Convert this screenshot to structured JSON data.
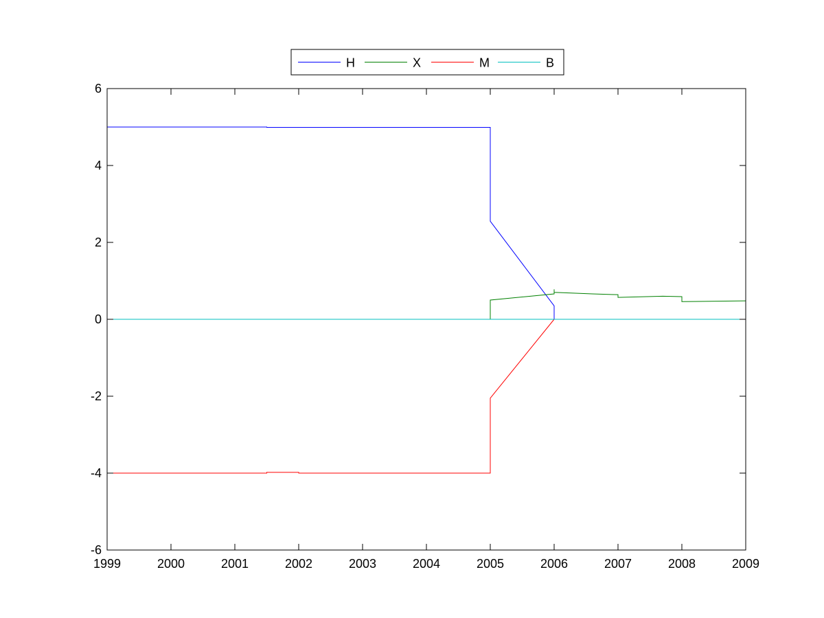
{
  "chart_data": {
    "type": "line",
    "xlim": [
      1999,
      2009
    ],
    "ylim": [
      -6,
      6
    ],
    "xticks": [
      1999,
      2000,
      2001,
      2002,
      2003,
      2004,
      2005,
      2006,
      2007,
      2008,
      2009
    ],
    "yticks": [
      -6,
      -4,
      -2,
      0,
      2,
      4,
      6
    ],
    "xtick_labels": [
      "1999",
      "2000",
      "2001",
      "2002",
      "2003",
      "2004",
      "2005",
      "2006",
      "2007",
      "2008",
      "2009"
    ],
    "ytick_labels": [
      "-6",
      "-4",
      "-2",
      "0",
      "2",
      "4",
      "6"
    ],
    "grid": false,
    "legend_position": "top-center, horizontal",
    "series": [
      {
        "name": "H",
        "color": "#0000ff",
        "points": [
          [
            1999,
            5.0
          ],
          [
            2001.5,
            5.0
          ],
          [
            2001.5,
            4.99
          ],
          [
            2005,
            4.99
          ],
          [
            2005,
            2.55
          ],
          [
            2006,
            0.35
          ],
          [
            2006,
            0.0
          ]
        ]
      },
      {
        "name": "X",
        "color": "#008000",
        "points": [
          [
            2005,
            0.0
          ],
          [
            2005,
            0.5
          ],
          [
            2006,
            0.66
          ],
          [
            2006,
            0.78
          ],
          [
            2006,
            0.7
          ],
          [
            2006.6,
            0.66
          ],
          [
            2007,
            0.64
          ],
          [
            2007,
            0.57
          ],
          [
            2007.7,
            0.6
          ],
          [
            2008,
            0.59
          ],
          [
            2008,
            0.46
          ],
          [
            2009,
            0.48
          ]
        ]
      },
      {
        "name": "M",
        "color": "#ff0000",
        "points": [
          [
            1999,
            -4.0
          ],
          [
            2001.5,
            -4.0
          ],
          [
            2001.5,
            -3.98
          ],
          [
            2002,
            -3.98
          ],
          [
            2002,
            -4.0
          ],
          [
            2005,
            -4.0
          ],
          [
            2005,
            -2.05
          ],
          [
            2006,
            0.0
          ]
        ]
      },
      {
        "name": "B",
        "color": "#00bfbf",
        "points": [
          [
            1999,
            0.0
          ],
          [
            2009,
            0.0
          ]
        ]
      }
    ]
  }
}
